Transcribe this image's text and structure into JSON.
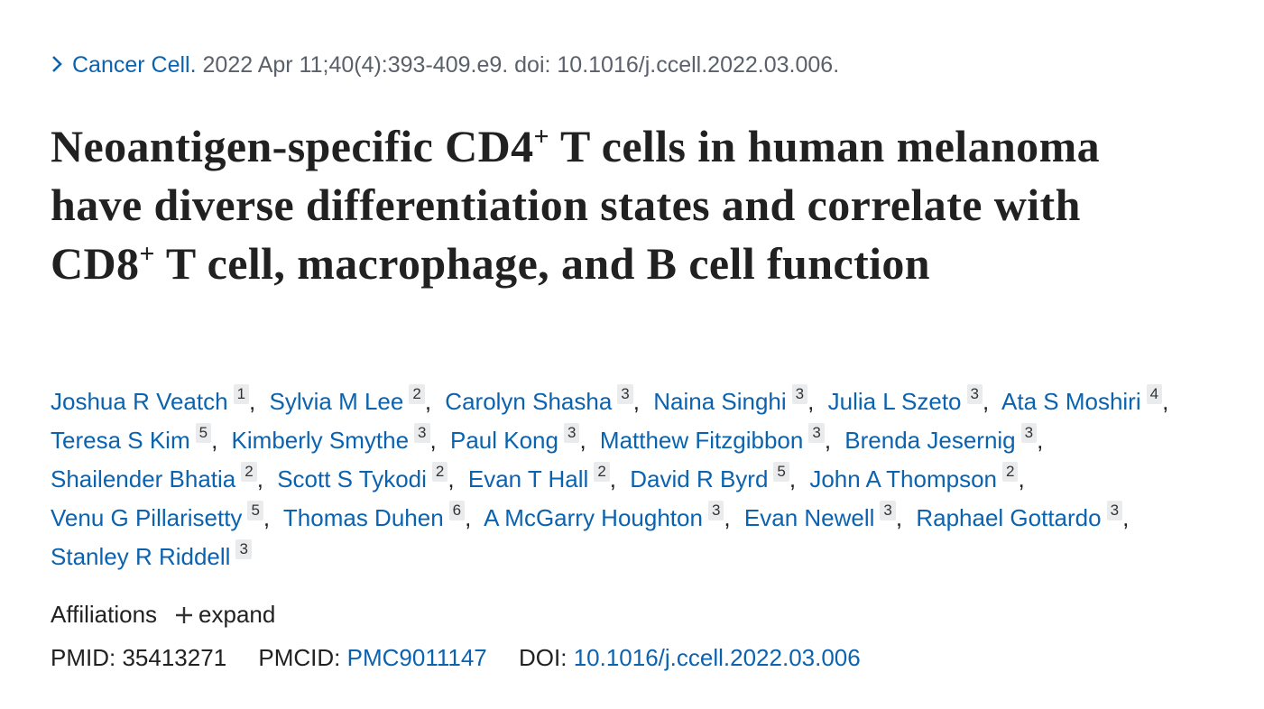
{
  "citation": {
    "journal": "Cancer Cell.",
    "details": "2022 Apr 11;40(4):393-409.e9. doi: 10.1016/j.ccell.2022.03.006."
  },
  "title_parts": [
    {
      "text": "Neoantigen-specific CD4"
    },
    {
      "text": "+",
      "sup": true
    },
    {
      "text": " T cells in human melanoma have diverse differentiation states and correlate with CD8"
    },
    {
      "text": "+",
      "sup": true
    },
    {
      "text": " T cell, macrophage, and B cell function"
    }
  ],
  "authors": [
    {
      "name": "Joshua R Veatch",
      "affiliation": "1"
    },
    {
      "name": "Sylvia M Lee",
      "affiliation": "2"
    },
    {
      "name": "Carolyn Shasha",
      "affiliation": "3"
    },
    {
      "name": "Naina Singhi",
      "affiliation": "3"
    },
    {
      "name": "Julia L Szeto",
      "affiliation": "3"
    },
    {
      "name": "Ata S Moshiri",
      "affiliation": "4"
    },
    {
      "name": "Teresa S Kim",
      "affiliation": "5"
    },
    {
      "name": "Kimberly Smythe",
      "affiliation": "3"
    },
    {
      "name": "Paul Kong",
      "affiliation": "3"
    },
    {
      "name": "Matthew Fitzgibbon",
      "affiliation": "3"
    },
    {
      "name": "Brenda Jesernig",
      "affiliation": "3"
    },
    {
      "name": "Shailender Bhatia",
      "affiliation": "2"
    },
    {
      "name": "Scott S Tykodi",
      "affiliation": "2"
    },
    {
      "name": "Evan T Hall",
      "affiliation": "2"
    },
    {
      "name": "David R Byrd",
      "affiliation": "5"
    },
    {
      "name": "John A Thompson",
      "affiliation": "2"
    },
    {
      "name": "Venu G Pillarisetty",
      "affiliation": "5"
    },
    {
      "name": "Thomas Duhen",
      "affiliation": "6"
    },
    {
      "name": "A McGarry Houghton",
      "affiliation": "3"
    },
    {
      "name": "Evan Newell",
      "affiliation": "3"
    },
    {
      "name": "Raphael Gottardo",
      "affiliation": "3"
    },
    {
      "name": "Stanley R Riddell",
      "affiliation": "3"
    }
  ],
  "affiliations": {
    "label": "Affiliations",
    "toggle": "expand"
  },
  "identifiers": {
    "pmid_label": "PMID:",
    "pmid": "35413271",
    "pmcid_label": "PMCID:",
    "pmcid": "PMC9011147",
    "doi_label": "DOI:",
    "doi": "10.1016/j.ccell.2022.03.006"
  }
}
